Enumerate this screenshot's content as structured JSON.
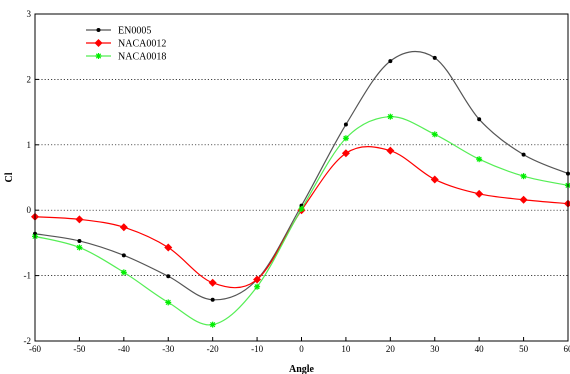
{
  "chart_data": {
    "type": "line",
    "xlabel": "Angle",
    "ylabel": "Cl",
    "xlim": [
      -60,
      60
    ],
    "ylim": [
      -2,
      3
    ],
    "xticks": [
      -60,
      -50,
      -40,
      -30,
      -20,
      -10,
      0,
      10,
      20,
      30,
      40,
      50,
      60
    ],
    "yticks": [
      -2,
      -1,
      0,
      1,
      2,
      3
    ],
    "grid": "horizontal dotted",
    "legend": "top-left",
    "x": [
      -60,
      -50,
      -40,
      -30,
      -20,
      -10,
      0,
      10,
      20,
      30,
      40,
      50,
      60
    ],
    "series": [
      {
        "name": "EN0005",
        "color": "#000000",
        "line_color": "#555555",
        "marker": "dot",
        "values": [
          -0.36,
          -0.47,
          -0.69,
          -1.01,
          -1.37,
          -1.06,
          0.07,
          1.31,
          2.28,
          2.33,
          1.39,
          0.85,
          0.56
        ]
      },
      {
        "name": "NACA0012",
        "color": "#ff0000",
        "line_color": "#ff0000",
        "marker": "diamond",
        "values": [
          -0.1,
          -0.14,
          -0.26,
          -0.57,
          -1.11,
          -1.06,
          0.0,
          0.87,
          0.91,
          0.47,
          0.25,
          0.16,
          0.1
        ]
      },
      {
        "name": "NACA0018",
        "color": "#00ee00",
        "line_color": "#55ee55",
        "marker": "star",
        "values": [
          -0.4,
          -0.57,
          -0.95,
          -1.41,
          -1.75,
          -1.17,
          0.02,
          1.1,
          1.43,
          1.16,
          0.78,
          0.52,
          0.38
        ]
      }
    ]
  }
}
